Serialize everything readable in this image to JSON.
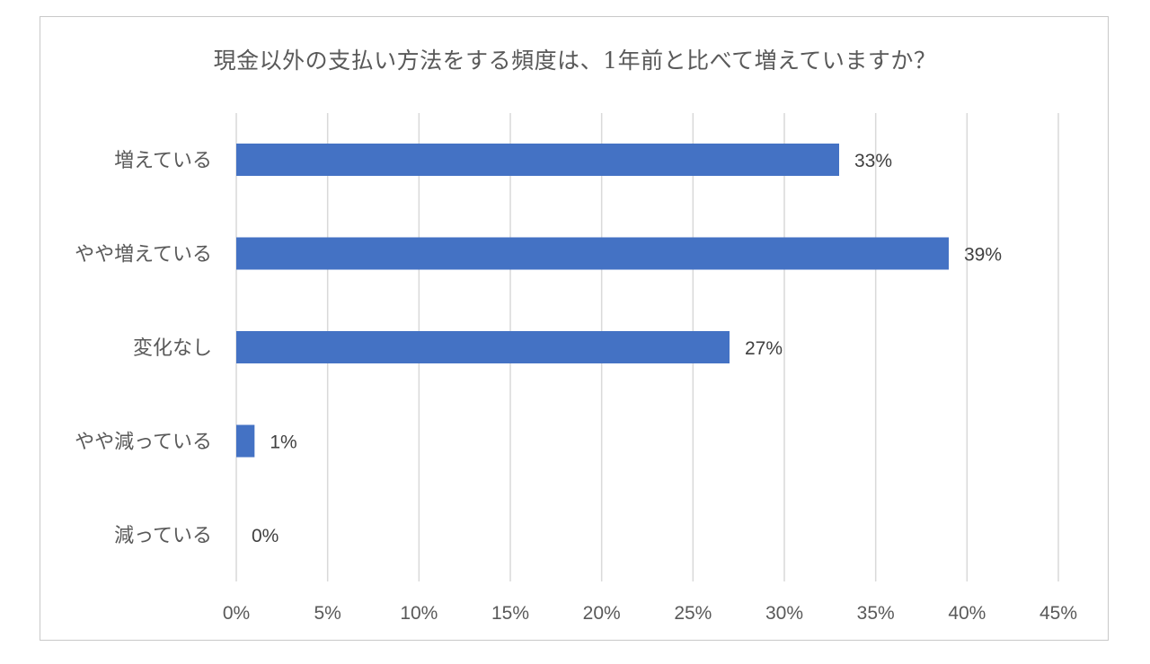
{
  "chart_data": {
    "type": "bar",
    "orientation": "horizontal",
    "title": "現金以外の支払い方法をする頻度は、1年前と比べて増えていますか？",
    "categories": [
      "増えている",
      "やや増えている",
      "変化なし",
      "やや減っている",
      "減っている"
    ],
    "values": [
      33,
      39,
      27,
      1,
      0
    ],
    "data_labels": [
      "33%",
      "39%",
      "27%",
      "1%",
      "0%"
    ],
    "xlim": [
      0,
      45
    ],
    "x_ticks": [
      0,
      5,
      10,
      15,
      20,
      25,
      30,
      35,
      40,
      45
    ],
    "x_tick_labels": [
      "0%",
      "5%",
      "10%",
      "15%",
      "20%",
      "25%",
      "30%",
      "35%",
      "40%",
      "45%"
    ],
    "xlabel": "",
    "ylabel": "",
    "grid": "vertical",
    "legend": "none",
    "bar_color": "#4472c4"
  }
}
